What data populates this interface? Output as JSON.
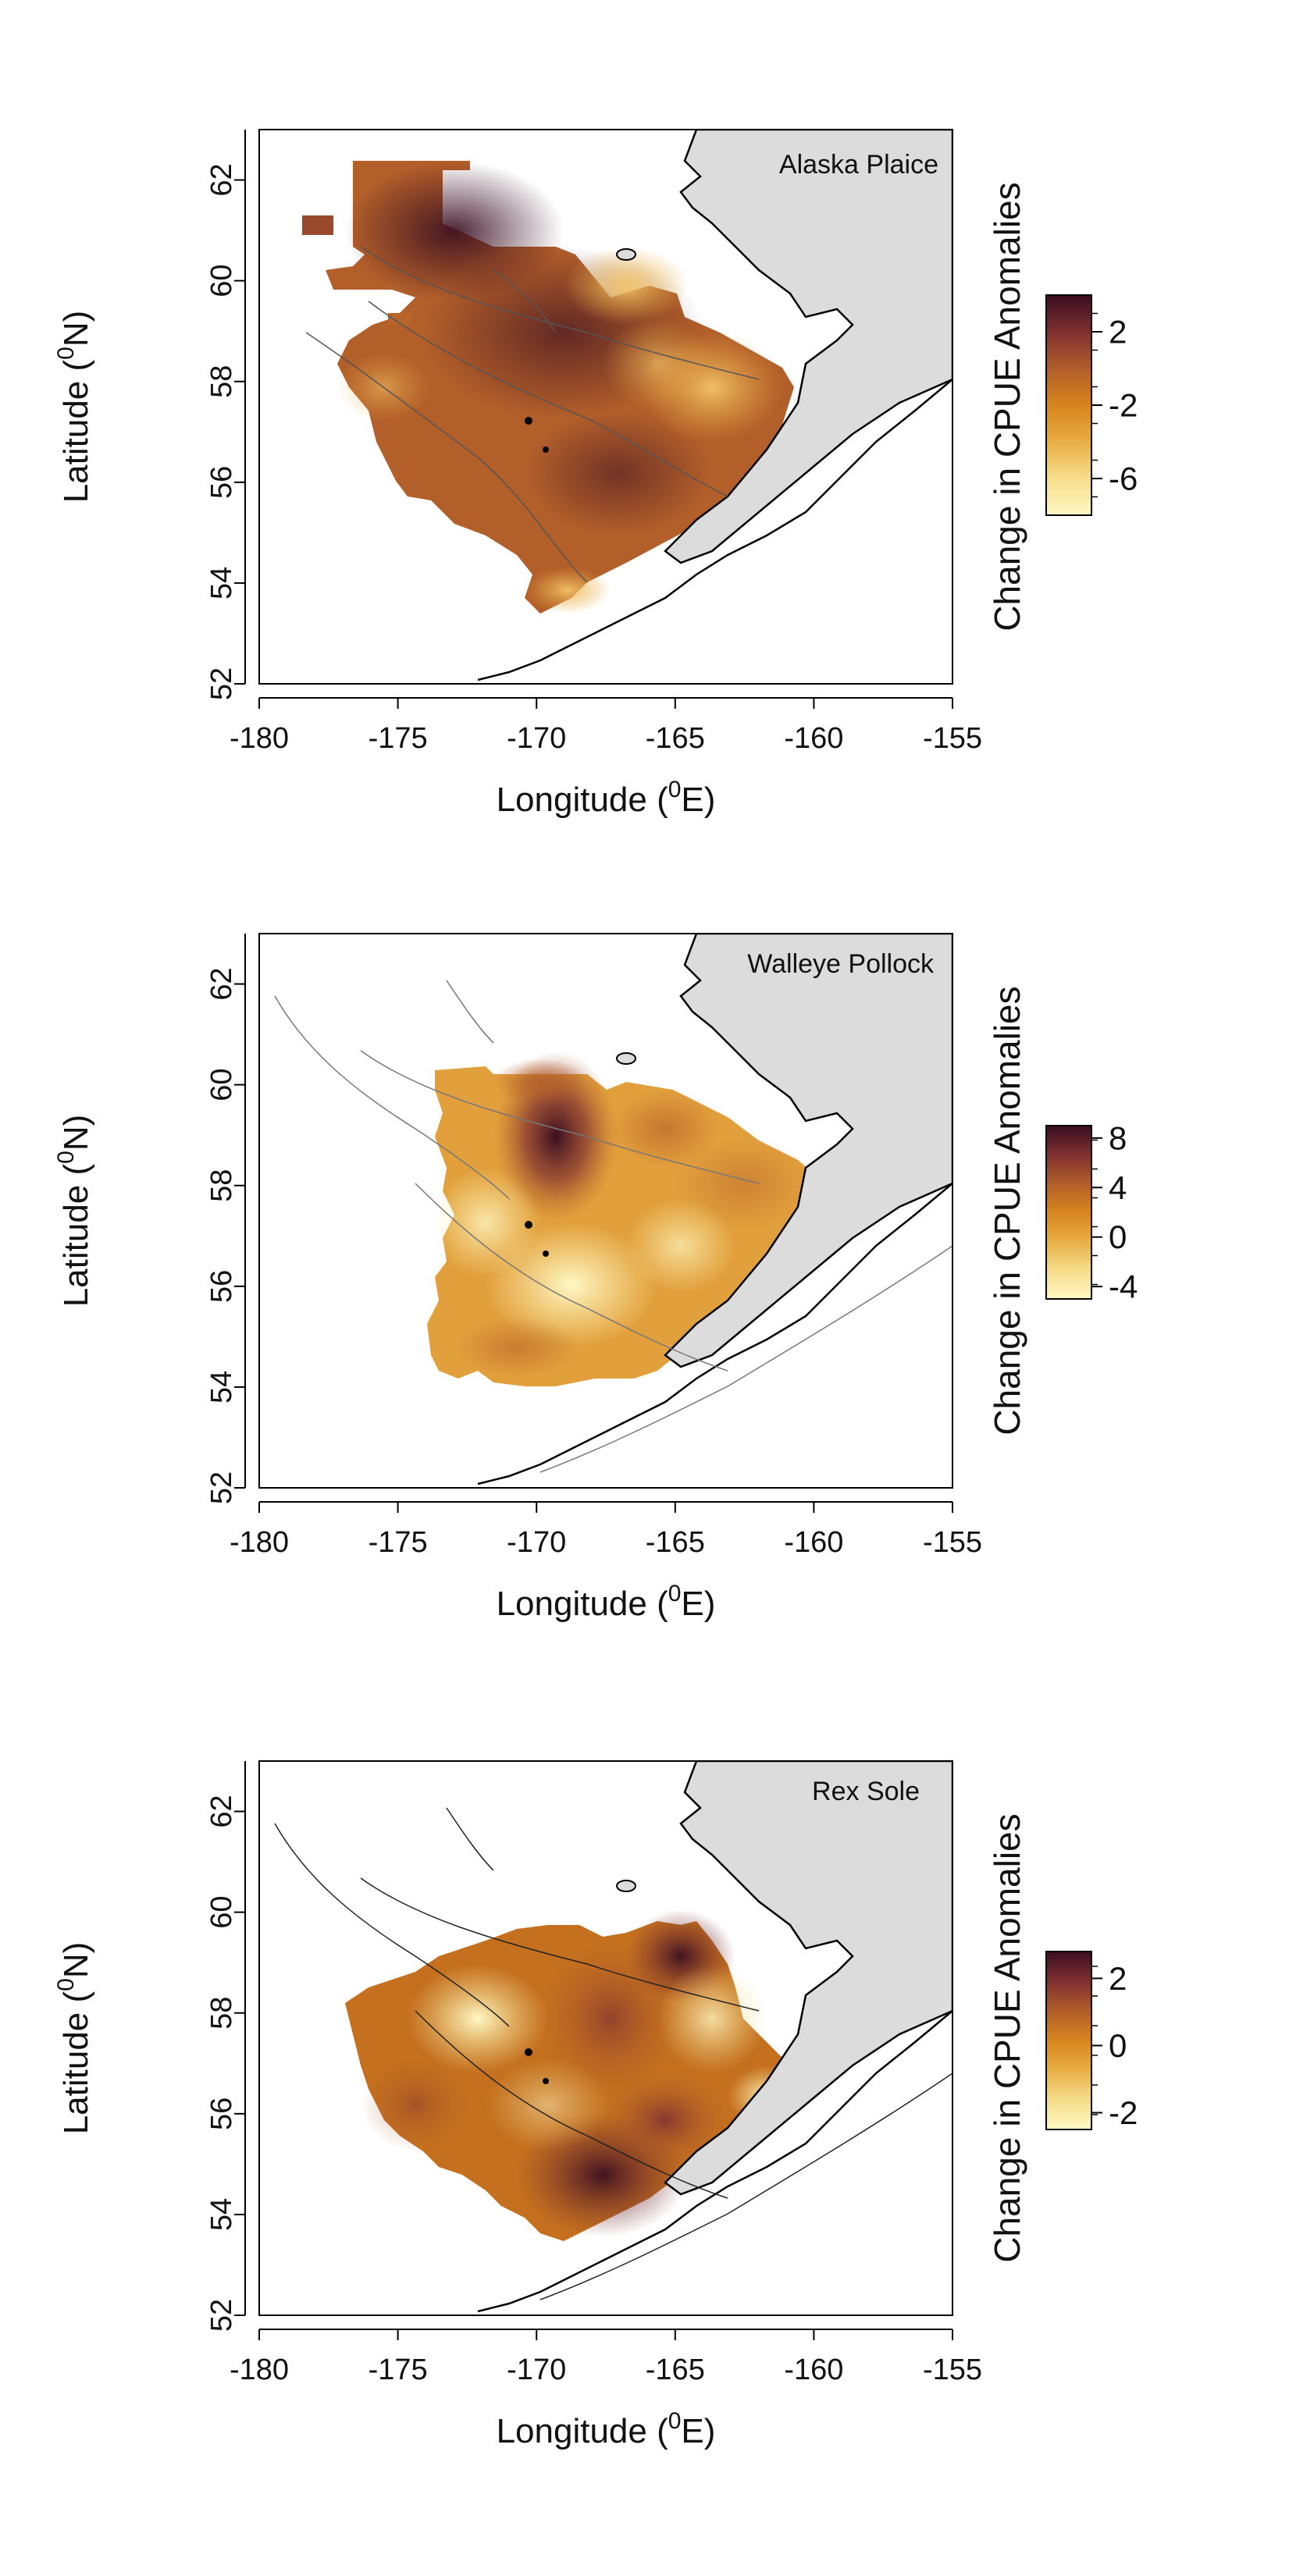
{
  "axes": {
    "x_label": "Longitude (",
    "x_label_sup": "0",
    "x_label_tail": "E)",
    "y_label": "Latitude (",
    "y_label_sup": "0",
    "y_label_tail": "N)",
    "x_ticks": [
      "-180",
      "-175",
      "-170",
      "-165",
      "-160",
      "-155"
    ],
    "y_ticks": [
      "52",
      "54",
      "56",
      "58",
      "60",
      "62"
    ],
    "x_range": [
      -180,
      -155
    ],
    "y_range": [
      52,
      63
    ]
  },
  "legend_title": "Change in CPUE Anomalies",
  "colors": {
    "land": "#dcdcdc",
    "coast": "#000000",
    "contour": "#808080",
    "ramp": [
      "#fff8c4",
      "#f6dc8a",
      "#e7a93f",
      "#d7851e",
      "#b35f2a",
      "#803030",
      "#3a0e22"
    ]
  },
  "panels": [
    {
      "species": "Alaska Plaice",
      "colorbar": {
        "ticks": [
          "2",
          "-2",
          "-6"
        ],
        "tick_values": [
          2,
          -2,
          -6
        ],
        "range": [
          -8,
          4
        ]
      }
    },
    {
      "species": "Walleye Pollock",
      "colorbar": {
        "ticks": [
          "8",
          "4",
          "0",
          "-4"
        ],
        "tick_values": [
          8,
          4,
          0,
          -4
        ],
        "range": [
          -5,
          9
        ]
      }
    },
    {
      "species": "Rex Sole",
      "colorbar": {
        "ticks": [
          "2",
          "0",
          "-2"
        ],
        "tick_values": [
          2,
          0,
          -2
        ],
        "range": [
          -2.5,
          2.8
        ]
      }
    }
  ]
}
